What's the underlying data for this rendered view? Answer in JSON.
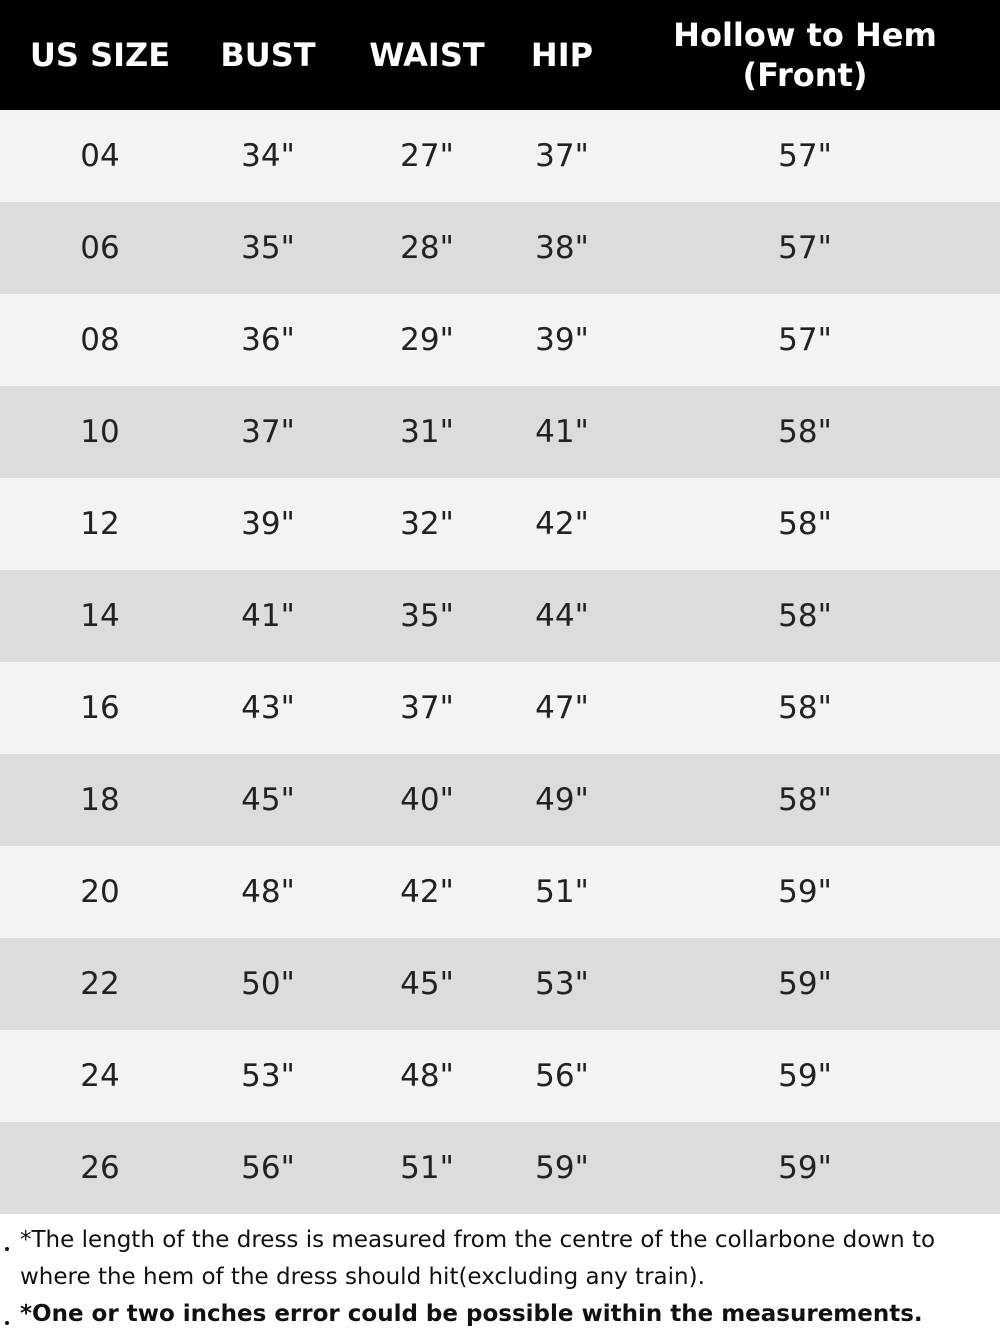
{
  "table": {
    "header": [
      "US SIZE",
      "BUST",
      "WAIST",
      "HIP",
      "Hollow to Hem\n(Front)"
    ],
    "rows": [
      [
        "04",
        "34\"",
        "27\"",
        "37\"",
        "57\""
      ],
      [
        "06",
        "35\"",
        "28\"",
        "38\"",
        "57\""
      ],
      [
        "08",
        "36\"",
        "29\"",
        "39\"",
        "57\""
      ],
      [
        "10",
        "37\"",
        "31\"",
        "41\"",
        "58\""
      ],
      [
        "12",
        "39\"",
        "32\"",
        "42\"",
        "58\""
      ],
      [
        "14",
        "41\"",
        "35\"",
        "44\"",
        "58\""
      ],
      [
        "16",
        "43\"",
        "37\"",
        "47\"",
        "58\""
      ],
      [
        "18",
        "45\"",
        "40\"",
        "49\"",
        "58\""
      ],
      [
        "20",
        "48\"",
        "42\"",
        "51\"",
        "59\""
      ],
      [
        "22",
        "50\"",
        "45\"",
        "53\"",
        "59\""
      ],
      [
        "24",
        "53\"",
        "48\"",
        "56\"",
        "59\""
      ],
      [
        "26",
        "56\"",
        "51\"",
        "59\"",
        "59\""
      ]
    ]
  },
  "notes": [
    "*The length of the dress is measured from the centre of the collarbone down to where the hem of the dress should hit(excluding any train).",
    "*One or two inches error could be possible within the measurements."
  ]
}
